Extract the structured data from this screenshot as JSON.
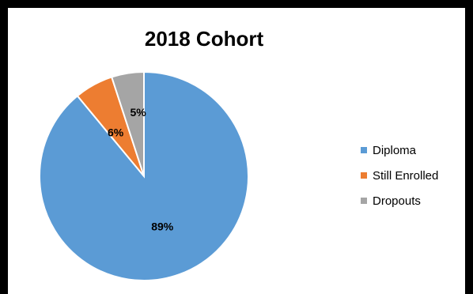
{
  "chart_data": {
    "type": "pie",
    "title": "2018 Cohort",
    "slices": [
      {
        "label": "Diploma",
        "value": 89,
        "display": "89%",
        "color": "#5b9bd5"
      },
      {
        "label": "Still Enrolled",
        "value": 6,
        "display": "6%",
        "color": "#ed7d31"
      },
      {
        "label": "Dropouts",
        "value": 5,
        "display": "5%",
        "color": "#a5a5a5"
      }
    ],
    "legend": "right"
  }
}
